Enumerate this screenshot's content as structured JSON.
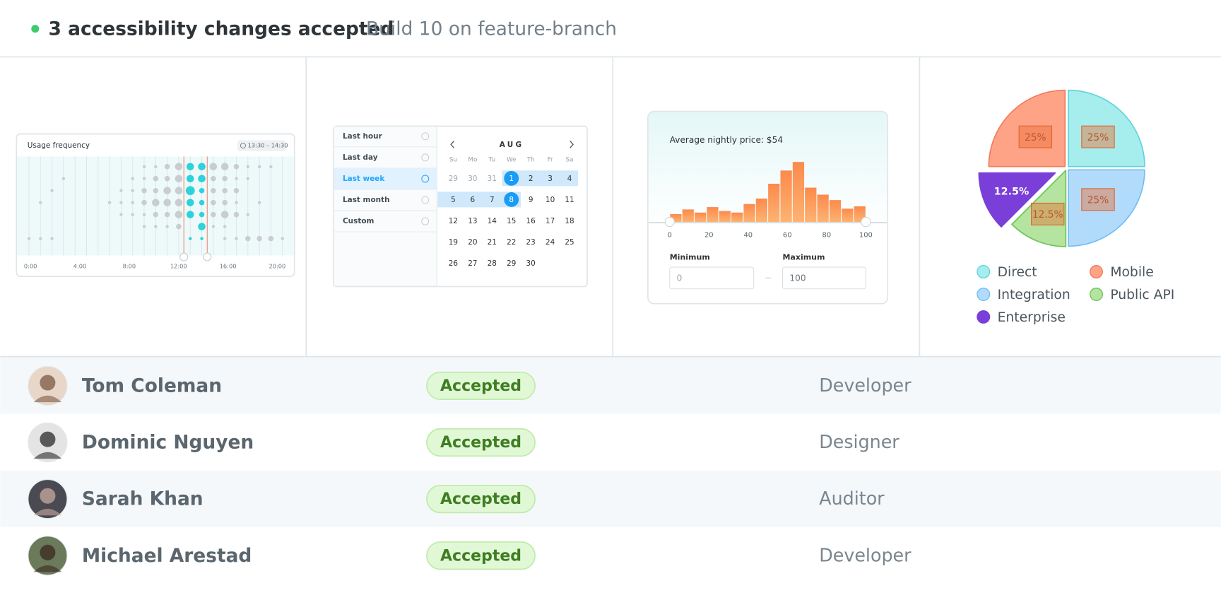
{
  "header": {
    "status": "3 accessibility changes accepted",
    "build": "Build 10 on feature-branch"
  },
  "usage_chart": {
    "title": "Usage frequency",
    "range": "13:30 – 14:30",
    "x_labels": [
      "0:00",
      "4:00",
      "8:00",
      "12:00",
      "16:00",
      "20:00"
    ],
    "dot_sizes": [
      [
        0,
        0,
        0,
        0,
        0,
        0,
        1
      ],
      [
        0,
        0,
        0,
        1,
        0,
        0,
        1
      ],
      [
        0,
        0,
        1,
        0,
        0,
        0,
        1
      ],
      [
        0,
        1,
        0,
        0,
        0,
        0,
        0
      ],
      [
        0,
        0,
        0,
        0,
        0,
        0,
        0
      ],
      [
        0,
        0,
        0,
        0,
        0,
        0,
        0
      ],
      [
        0,
        0,
        0,
        0,
        0,
        0,
        0
      ],
      [
        0,
        0,
        0,
        1,
        0,
        0,
        0
      ],
      [
        0,
        0,
        1,
        1,
        1,
        0,
        0
      ],
      [
        0,
        1,
        1,
        1,
        1,
        0,
        0
      ],
      [
        1,
        1,
        2,
        2,
        1,
        1,
        0
      ],
      [
        1,
        2,
        2,
        3,
        2,
        1,
        0
      ],
      [
        2,
        2,
        3,
        3,
        2,
        1,
        0
      ],
      [
        3,
        3,
        3,
        3,
        3,
        2,
        0
      ],
      [
        3,
        3,
        4,
        3,
        3,
        0,
        1
      ],
      [
        3,
        3,
        2,
        2,
        2,
        3,
        1
      ],
      [
        3,
        2,
        2,
        2,
        2,
        1,
        0
      ],
      [
        3,
        2,
        2,
        2,
        3,
        1,
        1
      ],
      [
        2,
        1,
        2,
        1,
        2,
        0,
        1
      ],
      [
        1,
        1,
        0,
        0,
        1,
        0,
        2
      ],
      [
        1,
        0,
        0,
        1,
        0,
        0,
        2
      ],
      [
        1,
        0,
        0,
        0,
        0,
        0,
        2
      ],
      [
        0,
        0,
        0,
        0,
        0,
        0,
        1
      ]
    ]
  },
  "date_picker": {
    "presets": [
      "Last hour",
      "Last day",
      "Last week",
      "Last month",
      "Custom"
    ],
    "month": "AUG",
    "weekdays": [
      "Su",
      "Mo",
      "Tu",
      "We",
      "Th",
      "Fr",
      "Sa"
    ],
    "weeks": [
      [
        29,
        30,
        31,
        1,
        2,
        3,
        4
      ],
      [
        5,
        6,
        7,
        8,
        9,
        10,
        11
      ],
      [
        12,
        13,
        14,
        15,
        16,
        17,
        18
      ],
      [
        19,
        20,
        21,
        22,
        23,
        24,
        25
      ],
      [
        26,
        27,
        28,
        29,
        30
      ]
    ]
  },
  "price_histogram": {
    "type": "histogram",
    "title": "Average nightly price: $54",
    "bins": [
      0,
      6.25,
      12.5,
      18.75,
      25,
      31.25,
      37.5,
      43.75,
      50,
      56.25,
      62.5,
      68.75,
      75,
      81.25,
      87.5,
      93.75,
      100
    ],
    "counts": [
      10,
      16,
      12,
      19,
      14,
      12,
      23,
      30,
      49,
      66,
      77,
      44,
      35,
      28,
      17,
      20
    ],
    "xlim": [
      0,
      100
    ],
    "xticks": [
      0,
      20,
      40,
      60,
      80,
      100
    ],
    "color": "#fb9656",
    "min_label": "Minimum",
    "max_label": "Maximum",
    "min_input": "0",
    "max_input": "100"
  },
  "pie": {
    "type": "pie",
    "categories": [
      "Direct",
      "Integration",
      "Public API",
      "Enterprise",
      "Mobile"
    ],
    "values": [
      25,
      25,
      12.5,
      12.5,
      25
    ],
    "value_labels": [
      "25%",
      "25%",
      "12.5%",
      "12.5%",
      "25%"
    ],
    "colors": [
      "#a6eded",
      "#b2dbfb",
      "#b5e3a0",
      "#7a3fd8",
      "#ffa387"
    ],
    "strokes": [
      "#5fd3dc",
      "#6cbff3",
      "#6cc35a",
      "#7a3fd8",
      "#f47a5a"
    ]
  },
  "people": {
    "rows": [
      {
        "name": "Tom Coleman",
        "status": "Accepted",
        "role": "Developer"
      },
      {
        "name": "Dominic Nguyen",
        "status": "Accepted",
        "role": "Designer"
      },
      {
        "name": "Sarah Khan",
        "status": "Accepted",
        "role": "Auditor"
      },
      {
        "name": "Michael Arestad",
        "status": "Accepted",
        "role": "Developer"
      }
    ]
  }
}
